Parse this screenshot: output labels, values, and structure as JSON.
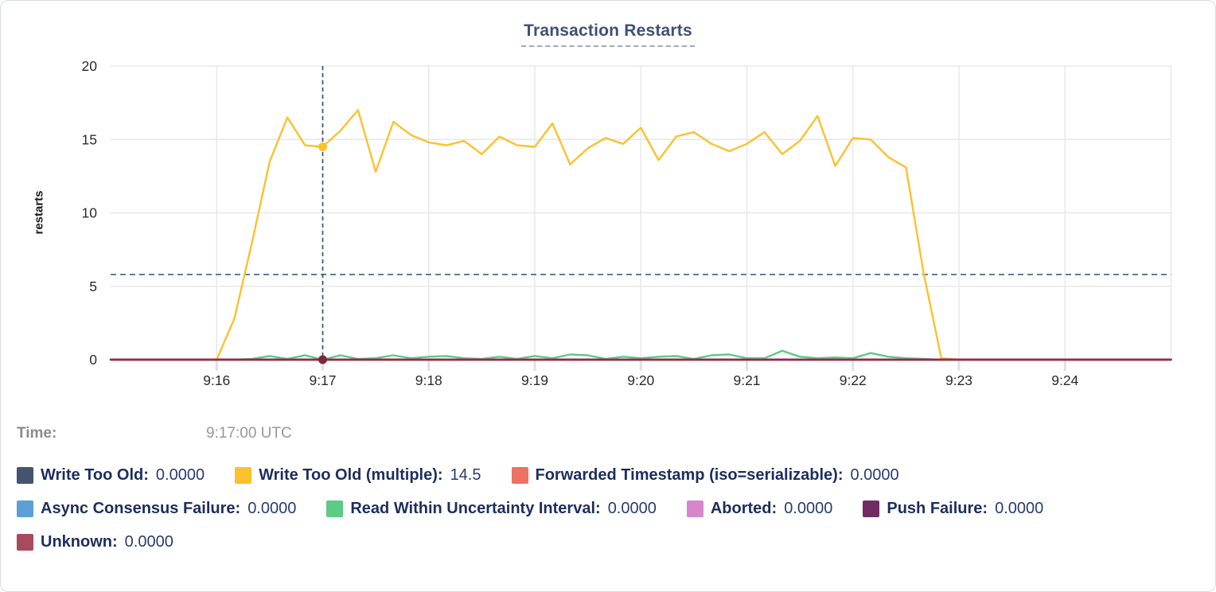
{
  "chart": {
    "title": "Transaction Restarts",
    "ylabel": "restarts"
  },
  "tooltip": {
    "label": "Time:",
    "value": "9:17:00 UTC"
  },
  "colors": {
    "title": "#3d5175",
    "legend_text": "#1d2e5e",
    "gridline": "#e8e8e8",
    "threshold_line": "#5e7f98",
    "crosshair": "#3c5c7c"
  },
  "chart_data": {
    "type": "line",
    "title": "Transaction Restarts",
    "xlabel": "",
    "ylabel": "restarts",
    "ylim": [
      0,
      20
    ],
    "y_ticks": [
      0,
      5,
      10,
      15,
      20
    ],
    "x_ticks": [
      "9:16",
      "9:17",
      "9:18",
      "9:19",
      "9:20",
      "9:21",
      "9:22",
      "9:23",
      "9:24"
    ],
    "x_domain": [
      "9:15:00",
      "9:25:00"
    ],
    "x_step_seconds": 10,
    "n_points": 61,
    "grid": true,
    "threshold_line": {
      "value": 5.8,
      "style": "dashed"
    },
    "crosshair": {
      "index": 12,
      "time": "9:17:00 UTC"
    },
    "highlight_dots": [
      {
        "series": "Write Too Old (multiple)",
        "index": 12,
        "value": 14.5,
        "color": "#fcc12e"
      },
      {
        "series": "Unknown",
        "index": 12,
        "value": 0,
        "color": "#7c2838"
      }
    ],
    "series": [
      {
        "name": "Write Too Old",
        "color": "#44536e",
        "constant": 0
      },
      {
        "name": "Write Too Old (multiple)",
        "color": "#fcc12e",
        "values": [
          0,
          0,
          0,
          0,
          0,
          0,
          0,
          2.8,
          8,
          13.5,
          16.5,
          14.6,
          14.5,
          15.6,
          17,
          12.8,
          16.2,
          15.3,
          14.8,
          14.6,
          14.9,
          14,
          15.2,
          14.6,
          14.5,
          16.1,
          13.3,
          14.4,
          15.1,
          14.7,
          15.8,
          13.6,
          15.2,
          15.5,
          14.7,
          14.2,
          14.7,
          15.5,
          14,
          14.9,
          16.6,
          13.2,
          15.1,
          15,
          13.8,
          13.1,
          5.9,
          0.1,
          0,
          0,
          0,
          0,
          0,
          0,
          0,
          0,
          0,
          0,
          0,
          0,
          0
        ]
      },
      {
        "name": "Forwarded Timestamp (iso=serializable)",
        "color": "#ee7163",
        "constant": 0
      },
      {
        "name": "Async Consensus Failure",
        "color": "#5c9fd6",
        "constant": 0
      },
      {
        "name": "Read Within Uncertainty Interval",
        "color": "#5ccb83",
        "values": [
          0,
          0,
          0,
          0,
          0,
          0,
          0,
          0,
          0.05,
          0.25,
          0.05,
          0.3,
          0,
          0.3,
          0.05,
          0.1,
          0.3,
          0.1,
          0.2,
          0.25,
          0.1,
          0.05,
          0.2,
          0.05,
          0.25,
          0.1,
          0.35,
          0.3,
          0.05,
          0.2,
          0.1,
          0.2,
          0.25,
          0.05,
          0.3,
          0.35,
          0.1,
          0.1,
          0.6,
          0.2,
          0.1,
          0.15,
          0.1,
          0.45,
          0.2,
          0.1,
          0.05,
          0,
          0,
          0,
          0,
          0,
          0,
          0,
          0,
          0,
          0,
          0,
          0,
          0,
          0
        ]
      },
      {
        "name": "Aborted",
        "color": "#d886cb",
        "constant": 0
      },
      {
        "name": "Push Failure",
        "color": "#712b63",
        "constant": 0
      },
      {
        "name": "Unknown",
        "color": "#9b2b3e",
        "constant": 0
      }
    ]
  },
  "legend": {
    "rows": [
      [
        {
          "id": "write-too-old",
          "label": "Write Too Old:",
          "value": "0.0000",
          "color": "#44536e"
        },
        {
          "id": "write-too-old-multiple",
          "label": "Write Too Old (multiple):",
          "value": "14.5",
          "color": "#fcc12e"
        },
        {
          "id": "forwarded-timestamp",
          "label": "Forwarded Timestamp (iso=serializable):",
          "value": "0.0000",
          "color": "#ee7163"
        }
      ],
      [
        {
          "id": "async-consensus-failure",
          "label": "Async Consensus Failure:",
          "value": "0.0000",
          "color": "#5c9fd6"
        },
        {
          "id": "read-within-uncertainty-interval",
          "label": "Read Within Uncertainty Interval:",
          "value": "0.0000",
          "color": "#5ccb83"
        },
        {
          "id": "aborted",
          "label": "Aborted:",
          "value": "0.0000",
          "color": "#d886cb"
        },
        {
          "id": "push-failure",
          "label": "Push Failure:",
          "value": "0.0000",
          "color": "#712b63"
        }
      ],
      [
        {
          "id": "unknown",
          "label": "Unknown:",
          "value": "0.0000",
          "color": "#a84a60"
        }
      ]
    ]
  }
}
